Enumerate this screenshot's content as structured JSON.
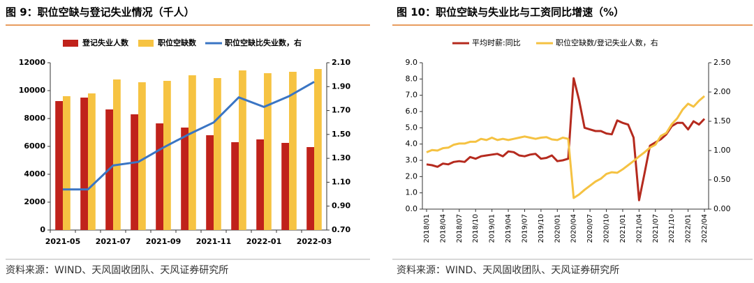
{
  "chart_data": [
    {
      "type": "bar",
      "title": "图 9：职位空缺与登记失业情况（千人）",
      "source": "资料来源：WIND、天风固收团队、天风证券研究所",
      "categories": [
        "2021-05",
        null,
        "2021-07",
        null,
        "2021-09",
        null,
        "2021-11",
        null,
        "2022-01",
        null,
        "2022-03"
      ],
      "series": [
        {
          "name": "登记失业人数",
          "color": "#c0221b",
          "values": [
            9250,
            9500,
            8650,
            8300,
            7650,
            7350,
            6800,
            6300,
            6500,
            6250,
            5950
          ]
        },
        {
          "name": "职位空缺数",
          "color": "#f6c342",
          "values": [
            9600,
            9800,
            10800,
            10600,
            10700,
            11100,
            10900,
            11450,
            11250,
            11350,
            11550
          ]
        },
        {
          "name": "职位空缺比失业数，右",
          "color": "#3a75c4",
          "type": "line",
          "axis": "y2",
          "values": [
            1.04,
            1.04,
            1.24,
            1.27,
            1.39,
            1.5,
            1.6,
            1.81,
            1.73,
            1.82,
            1.94
          ]
        }
      ],
      "ylim": [
        0,
        12000
      ],
      "yticks": [
        0,
        2000,
        4000,
        6000,
        8000,
        10000,
        12000
      ],
      "y2lim": [
        0.7,
        2.1
      ],
      "y2ticks": [
        {
          "value": 0.7,
          "label": "0.70"
        },
        {
          "value": 0.9,
          "label": "0.90"
        },
        {
          "value": 1.1,
          "label": "1.10"
        },
        {
          "value": 1.3,
          "label": "1.30"
        },
        {
          "value": 1.5,
          "label": "1.50"
        },
        {
          "value": 1.7,
          "label": "1.70"
        },
        {
          "value": 1.9,
          "label": "1.90"
        },
        {
          "value": 2.1,
          "label": "2.10"
        }
      ],
      "legend": "top"
    },
    {
      "type": "line",
      "title": "图 10：职位空缺与失业比与工资同比增速（%）",
      "source": "资料来源：WIND、天风固收团队、天风证券研究所",
      "categories": [
        "2018/01",
        null,
        null,
        "2018/04",
        null,
        null,
        "2018/07",
        null,
        null,
        "2018/10",
        null,
        null,
        "2019/01",
        null,
        null,
        "2019/04",
        null,
        null,
        "2019/07",
        null,
        null,
        "2019/10",
        null,
        null,
        "2020/01",
        null,
        null,
        "2020/04",
        null,
        null,
        "2020/07",
        null,
        null,
        "2020/10",
        null,
        null,
        "2021/01",
        null,
        null,
        "2021/04",
        null,
        null,
        "2021/07",
        null,
        null,
        "2021/10",
        null,
        null,
        "2022/01",
        null,
        null,
        "2022/04"
      ],
      "series": [
        {
          "name": "平均时薪:同比",
          "color": "#b52a1e",
          "values": [
            2.75,
            2.7,
            2.6,
            2.8,
            2.75,
            2.9,
            2.95,
            2.9,
            3.2,
            3.1,
            3.25,
            3.3,
            3.35,
            3.4,
            3.25,
            3.55,
            3.5,
            3.3,
            3.25,
            3.35,
            3.4,
            3.1,
            3.15,
            3.3,
            2.95,
            3.0,
            3.1,
            8.05,
            6.7,
            5.0,
            4.9,
            4.8,
            4.8,
            4.65,
            4.6,
            5.45,
            5.3,
            5.2,
            4.4,
            0.55,
            2.2,
            3.9,
            4.1,
            4.3,
            4.6,
            5.1,
            5.3,
            5.3,
            4.9,
            5.4,
            5.2,
            5.55
          ]
        },
        {
          "name": "职位空缺数/登记失业人数，右",
          "color": "#f5c242",
          "axis": "y2",
          "values": [
            0.97,
            1.01,
            1.0,
            1.04,
            1.05,
            1.1,
            1.12,
            1.12,
            1.15,
            1.15,
            1.2,
            1.18,
            1.22,
            1.18,
            1.2,
            1.18,
            1.2,
            1.22,
            1.24,
            1.22,
            1.2,
            1.22,
            1.23,
            1.19,
            1.18,
            1.22,
            1.2,
            0.19,
            0.25,
            0.33,
            0.4,
            0.47,
            0.52,
            0.6,
            0.63,
            0.62,
            0.68,
            0.75,
            0.82,
            0.9,
            0.97,
            1.05,
            1.1,
            1.25,
            1.3,
            1.45,
            1.55,
            1.7,
            1.8,
            1.75,
            1.85,
            1.93
          ]
        }
      ],
      "ylim": [
        0,
        9
      ],
      "yticks": [
        {
          "value": 0,
          "label": "0.0"
        },
        {
          "value": 1,
          "label": "1.0"
        },
        {
          "value": 2,
          "label": "2.0"
        },
        {
          "value": 3,
          "label": "3.0"
        },
        {
          "value": 4,
          "label": "4.0"
        },
        {
          "value": 5,
          "label": "5.0"
        },
        {
          "value": 6,
          "label": "6.0"
        },
        {
          "value": 7,
          "label": "7.0"
        },
        {
          "value": 8,
          "label": "8.0"
        },
        {
          "value": 9,
          "label": "9.0"
        }
      ],
      "y2lim": [
        0,
        2.5
      ],
      "y2ticks": [
        {
          "value": 0,
          "label": "0.00"
        },
        {
          "value": 0.5,
          "label": "0.50"
        },
        {
          "value": 1,
          "label": "1.00"
        },
        {
          "value": 1.5,
          "label": "1.50"
        },
        {
          "value": 2,
          "label": "2.00"
        },
        {
          "value": 2.5,
          "label": "2.50"
        }
      ],
      "legend": "top"
    }
  ]
}
